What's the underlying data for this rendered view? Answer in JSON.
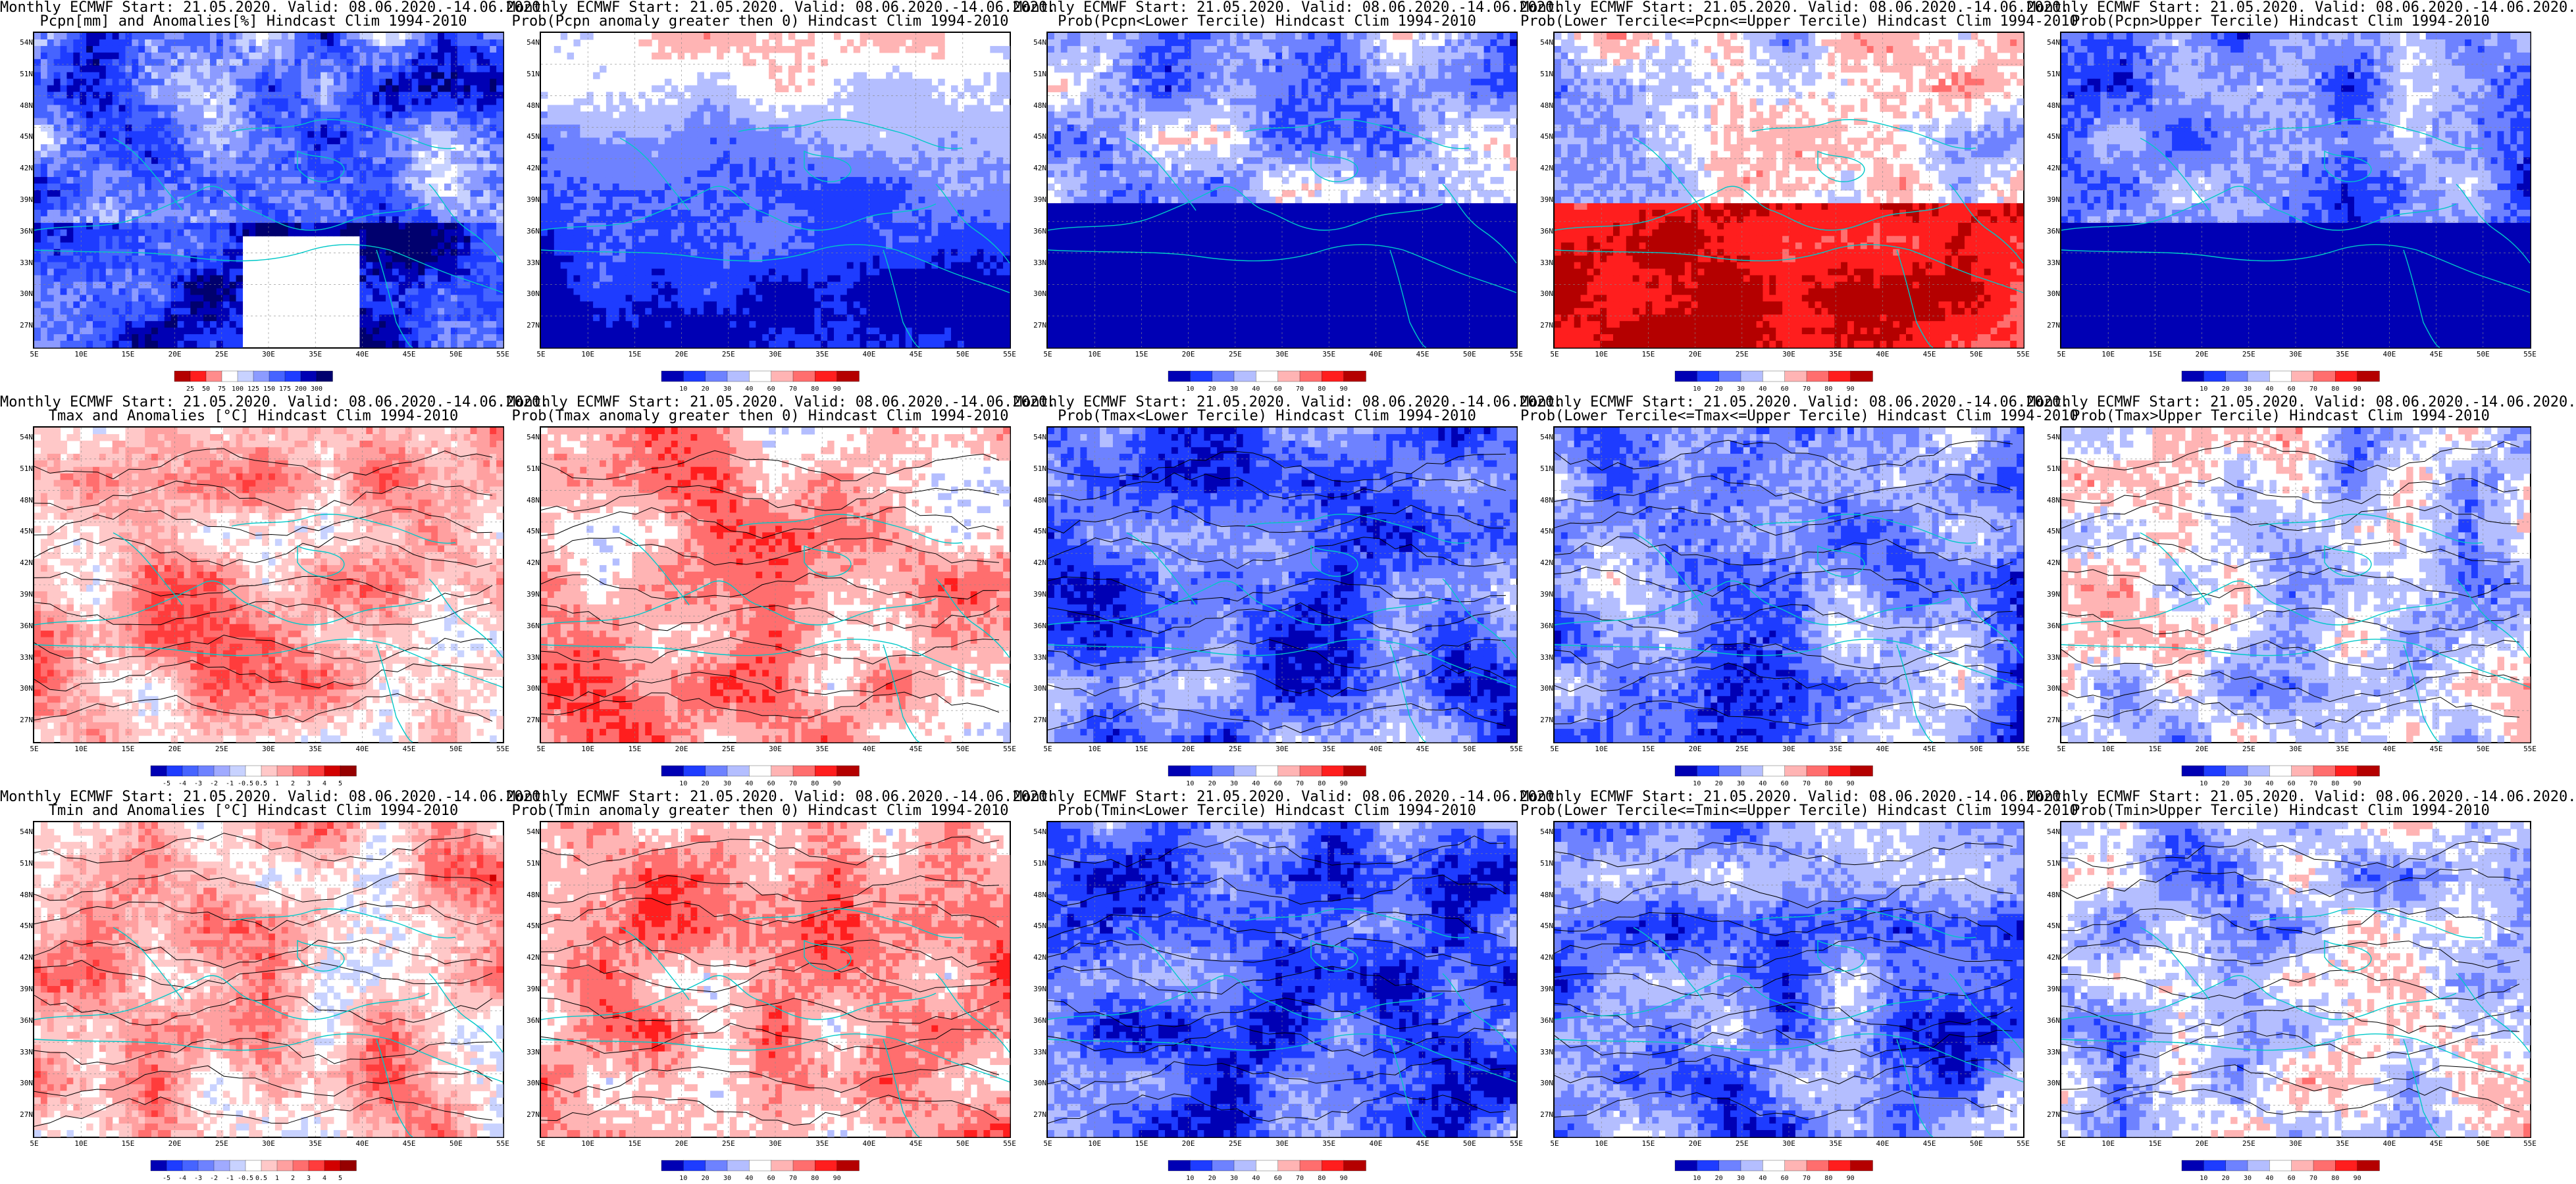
{
  "rows": [
    {
      "variable": "Pcpn",
      "panels": [
        {
          "line1": "Monthly ECMWF Start: 21.05.2020. Valid: 08.06.2020.-14.06.2020.",
          "line2": "Pcpn[mm] and Anomalies[%] Hindcast Clim 1994-2010",
          "palette": "anom_pcpn",
          "pattern": "pcpn_anom",
          "colorbar": [
            "25",
            "50",
            "75",
            "100",
            "125",
            "150",
            "175",
            "200",
            "300"
          ]
        },
        {
          "line1": "Monthly ECMWF Start: 21.05.2020. Valid: 08.06.2020.-14.06.2020.",
          "line2": "Prob(Pcpn anomaly greater then 0) Hindcast Clim 1994-2010",
          "palette": "prob",
          "pattern": "pcpn_pos",
          "colorbar": [
            "10",
            "20",
            "30",
            "40",
            "60",
            "70",
            "80",
            "90"
          ]
        },
        {
          "line1": "Monthly ECMWF Start: 21.05.2020. Valid: 08.06.2020.-14.06.2020.",
          "line2": "Prob(Pcpn<Lower Tercile) Hindcast Clim 1994-2010",
          "palette": "prob",
          "pattern": "pcpn_low",
          "colorbar": [
            "10",
            "20",
            "30",
            "40",
            "60",
            "70",
            "80",
            "90"
          ]
        },
        {
          "line1": "Monthly ECMWF Start: 21.05.2020. Valid: 08.06.2020.-14.06.2020.",
          "line2": "Prob(Lower Tercile<=Pcpn<=Upper Tercile) Hindcast Clim 1994-2010",
          "palette": "prob",
          "pattern": "pcpn_mid",
          "colorbar": [
            "10",
            "20",
            "30",
            "40",
            "60",
            "70",
            "80",
            "90"
          ]
        },
        {
          "line1": "Monthly ECMWF Start: 21.05.2020. Valid: 08.06.2020.-14.06.2020.",
          "line2": "Prob(Pcpn>Upper Tercile) Hindcast Clim 1994-2010",
          "palette": "prob",
          "pattern": "pcpn_up",
          "colorbar": [
            "10",
            "20",
            "30",
            "40",
            "60",
            "70",
            "80",
            "90"
          ]
        }
      ]
    },
    {
      "variable": "Tmax",
      "panels": [
        {
          "line1": "Monthly ECMWF Start: 21.05.2020. Valid: 08.06.2020.-14.06.2020.",
          "line2": "Tmax and Anomalies [°C] Hindcast Clim 1994-2010",
          "palette": "anom_t",
          "pattern": "t_anom",
          "colorbar": [
            "-5",
            "-4",
            "-3",
            "-2",
            "-1",
            "-0.5",
            "0.5",
            "1",
            "2",
            "3",
            "4",
            "5"
          ]
        },
        {
          "line1": "Monthly ECMWF Start: 21.05.2020. Valid: 08.06.2020.-14.06.2020.",
          "line2": "Prob(Tmax anomaly greater then 0) Hindcast Clim 1994-2010",
          "palette": "prob",
          "pattern": "t_pos",
          "colorbar": [
            "10",
            "20",
            "30",
            "40",
            "60",
            "70",
            "80",
            "90"
          ]
        },
        {
          "line1": "Monthly ECMWF Start: 21.05.2020. Valid: 08.06.2020.-14.06.2020.",
          "line2": "Prob(Tmax<Lower Tercile) Hindcast Clim 1994-2010",
          "palette": "prob",
          "pattern": "t_low",
          "colorbar": [
            "10",
            "20",
            "30",
            "40",
            "60",
            "70",
            "80",
            "90"
          ]
        },
        {
          "line1": "Monthly ECMWF Start: 21.05.2020. Valid: 08.06.2020.-14.06.2020.",
          "line2": "Prob(Lower Tercile<=Tmax<=Upper Tercile) Hindcast Clim 1994-2010",
          "palette": "prob",
          "pattern": "t_mid",
          "colorbar": [
            "10",
            "20",
            "30",
            "40",
            "60",
            "70",
            "80",
            "90"
          ]
        },
        {
          "line1": "Monthly ECMWF Start: 21.05.2020. Valid: 08.06.2020.-14.06.2020.",
          "line2": "Prob(Tmax>Upper Tercile) Hindcast Clim 1994-2010",
          "palette": "prob",
          "pattern": "t_up",
          "colorbar": [
            "10",
            "20",
            "30",
            "40",
            "60",
            "70",
            "80",
            "90"
          ]
        }
      ]
    },
    {
      "variable": "Tmin",
      "panels": [
        {
          "line1": "Monthly ECMWF Start: 21.05.2020. Valid: 08.06.2020.-14.06.2020.",
          "line2": "Tmin and Anomalies [°C] Hindcast Clim 1994-2010",
          "palette": "anom_t",
          "pattern": "tmin_anom",
          "colorbar": [
            "-5",
            "-4",
            "-3",
            "-2",
            "-1",
            "-0.5",
            "0.5",
            "1",
            "2",
            "3",
            "4",
            "5"
          ]
        },
        {
          "line1": "Monthly ECMWF Start: 21.05.2020. Valid: 08.06.2020.-14.06.2020.",
          "line2": "Prob(Tmin anomaly greater then 0) Hindcast Clim 1994-2010",
          "palette": "prob",
          "pattern": "tmin_pos",
          "colorbar": [
            "10",
            "20",
            "30",
            "40",
            "60",
            "70",
            "80",
            "90"
          ]
        },
        {
          "line1": "Monthly ECMWF Start: 21.05.2020. Valid: 08.06.2020.-14.06.2020.",
          "line2": "Prob(Tmin<Lower Tercile) Hindcast Clim 1994-2010",
          "palette": "prob",
          "pattern": "tmin_low",
          "colorbar": [
            "10",
            "20",
            "30",
            "40",
            "60",
            "70",
            "80",
            "90"
          ]
        },
        {
          "line1": "Monthly ECMWF Start: 21.05.2020. Valid: 08.06.2020.-14.06.2020.",
          "line2": "Prob(Lower Tercile<=Tmin<=Upper Tercile) Hindcast Clim 1994-2010",
          "palette": "prob",
          "pattern": "tmin_mid",
          "colorbar": [
            "10",
            "20",
            "30",
            "40",
            "60",
            "70",
            "80",
            "90"
          ]
        },
        {
          "line1": "Monthly ECMWF Start: 21.05.2020. Valid: 08.06.2020.-14.06.2020.",
          "line2": "Prob(Tmin>Upper Tercile) Hindcast Clim 1994-2010",
          "palette": "prob",
          "pattern": "tmin_up",
          "colorbar": [
            "10",
            "20",
            "30",
            "40",
            "60",
            "70",
            "80",
            "90"
          ]
        }
      ]
    }
  ],
  "axes": {
    "lat_labels": [
      "54N",
      "51N",
      "48N",
      "45N",
      "42N",
      "39N",
      "36N",
      "33N",
      "30N",
      "27N"
    ],
    "lon_labels": [
      "5E",
      "10E",
      "15E",
      "20E",
      "25E",
      "30E",
      "35E",
      "40E",
      "45E",
      "50E",
      "55E"
    ]
  },
  "palettes": {
    "prob": [
      "#0000b4",
      "#1e3cff",
      "#6e82ff",
      "#b4beff",
      "#ffffff",
      "#ffb4b4",
      "#ff6e6e",
      "#ff1e1e",
      "#b40000"
    ],
    "anom_t": [
      "#0000b4",
      "#1e3cff",
      "#4664ff",
      "#6e82ff",
      "#a0aaff",
      "#c8d2ff",
      "#ffffff",
      "#ffc8c8",
      "#ffa0a0",
      "#ff6e6e",
      "#ff3c3c",
      "#d20000",
      "#960000"
    ],
    "anom_pcpn": [
      "#b40000",
      "#ff1e1e",
      "#ff8c8c",
      "#ffffff",
      "#c8d2ff",
      "#8c9bff",
      "#4664ff",
      "#1e3cff",
      "#0000b4",
      "#00006e"
    ]
  },
  "colors": {
    "coastline": "#00c8c8",
    "contour": "#000000",
    "frame": "#000000"
  }
}
